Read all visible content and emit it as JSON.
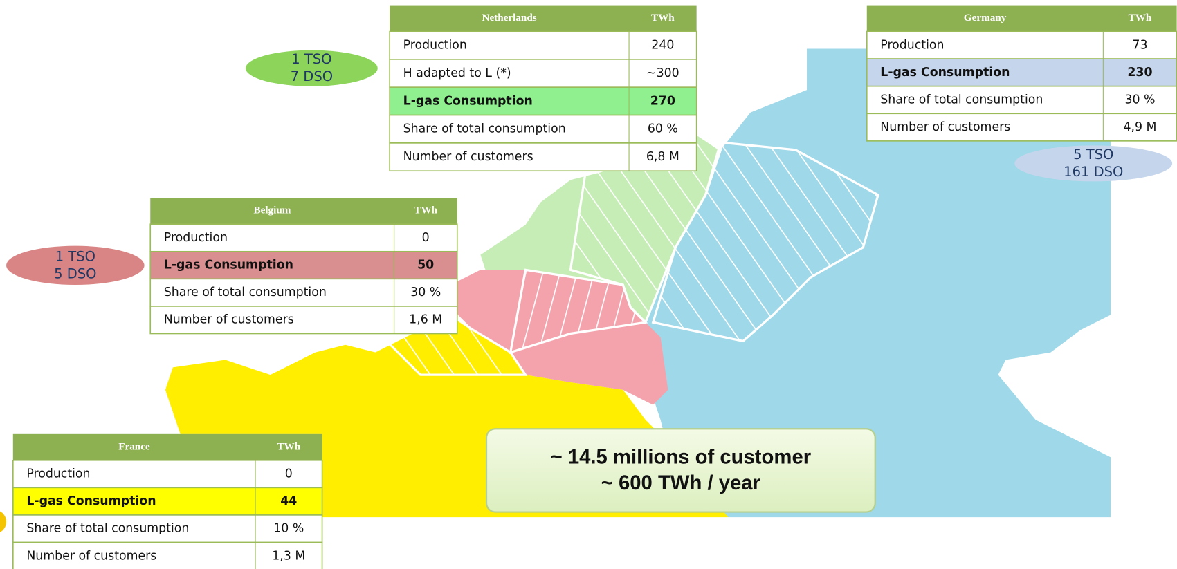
{
  "tables": [
    {
      "header": [
        "Netherlands",
        "TWh"
      ],
      "rows": [
        [
          "Production",
          "240"
        ],
        [
          "H adapted to L (*)",
          "~300"
        ],
        [
          "L-gas Consumption",
          "270"
        ],
        [
          "Share of total consumption",
          "60 %"
        ],
        [
          "Number of customers",
          "6,8 M"
        ]
      ]
    },
    {
      "header": [
        "Germany",
        "TWh"
      ],
      "rows": [
        [
          "Production",
          "73"
        ],
        [
          "L-gas Consumption",
          "230"
        ],
        [
          "Share of total consumption",
          "30 %"
        ],
        [
          "Number of customers",
          "4,9 M"
        ]
      ]
    },
    {
      "header": [
        "Belgium",
        "TWh"
      ],
      "rows": [
        [
          "Production",
          "0"
        ],
        [
          "L-gas Consumption",
          "50"
        ],
        [
          "Share of total consumption",
          "30 %"
        ],
        [
          "Number of customers",
          "1,6 M"
        ]
      ]
    },
    {
      "header": [
        "France",
        "TWh"
      ],
      "rows": [
        [
          "Production",
          "0"
        ],
        [
          "L-gas Consumption",
          "44"
        ],
        [
          "Share of total consumption",
          "10 %"
        ],
        [
          "Number of customers",
          "1,3 M"
        ]
      ]
    }
  ],
  "operators": [
    {
      "lines": [
        "1 TSO",
        "7 DSO"
      ]
    },
    {
      "lines": [
        "5 TSO",
        "161 DSO"
      ]
    },
    {
      "lines": [
        "1 TSO",
        "5 DSO"
      ]
    }
  ],
  "summary": [
    "~ 14.5 millions of customer",
    "~ 600 TWh / year"
  ]
}
